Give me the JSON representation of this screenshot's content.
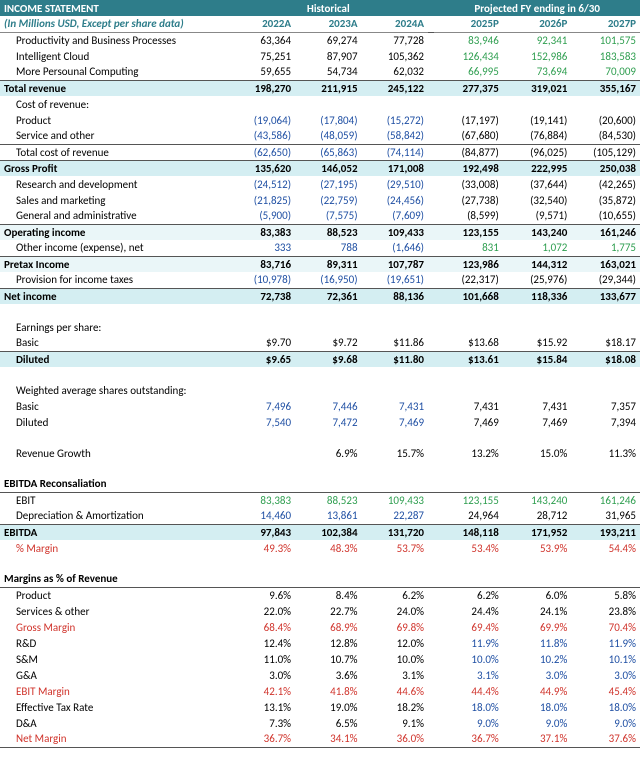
{
  "title": "INCOME STATEMENT",
  "subtitle": "(In Millions USD, Except per share data)",
  "hist_header": "Historical",
  "proj_header": "Projected FY ending in 6/30",
  "years": [
    "2022A",
    "2023A",
    "2024A",
    "2025P",
    "2026P",
    "2027P"
  ],
  "rows": [
    {
      "type": "plain",
      "indent": 1,
      "label": "Productivity and Business Processes",
      "h": [
        "63,364",
        "69,274",
        "77,728"
      ],
      "p": [
        "83,946",
        "92,341",
        "101,575"
      ],
      "pcolor": "green"
    },
    {
      "type": "plain",
      "indent": 1,
      "label": "Intelligent Cloud",
      "h": [
        "75,251",
        "87,907",
        "105,362"
      ],
      "p": [
        "126,434",
        "152,986",
        "183,583"
      ],
      "pcolor": "green"
    },
    {
      "type": "plain",
      "indent": 1,
      "label": "More Persounal Computing",
      "h": [
        "59,655",
        "54,734",
        "62,032"
      ],
      "p": [
        "66,995",
        "73,694",
        "70,009"
      ],
      "pcolor": "green",
      "bb": true
    },
    {
      "type": "band",
      "label": "Total revenue",
      "h": [
        "198,270",
        "211,915",
        "245,122"
      ],
      "p": [
        "277,375",
        "319,021",
        "355,167"
      ]
    },
    {
      "type": "plain",
      "indent": 1,
      "label": "Cost of revenue:",
      "h": [
        "",
        "",
        ""
      ],
      "p": [
        "",
        "",
        ""
      ]
    },
    {
      "type": "plain",
      "indent": 2,
      "label": "Product",
      "h": [
        "(19,064)",
        "(17,804)",
        "(15,272)"
      ],
      "p": [
        "(17,197)",
        "(19,141)",
        "(20,600)"
      ],
      "hcolor": "paren"
    },
    {
      "type": "plain",
      "indent": 2,
      "label": "Service and other",
      "h": [
        "(43,586)",
        "(48,059)",
        "(58,842)"
      ],
      "p": [
        "(67,680)",
        "(76,884)",
        "(84,530)"
      ],
      "hcolor": "paren",
      "bb": true
    },
    {
      "type": "plain",
      "indent": 1,
      "label": "Total cost of revenue",
      "h": [
        "(62,650)",
        "(65,863)",
        "(74,114)"
      ],
      "p": [
        "(84,877)",
        "(96,025)",
        "(105,129)"
      ],
      "hcolor": "paren",
      "bb": true
    },
    {
      "type": "band",
      "label": "Gross Profit",
      "h": [
        "135,620",
        "146,052",
        "171,008"
      ],
      "p": [
        "192,498",
        "222,995",
        "250,038"
      ]
    },
    {
      "type": "plain",
      "indent": 1,
      "label": "Research and development",
      "h": [
        "(24,512)",
        "(27,195)",
        "(29,510)"
      ],
      "p": [
        "(33,008)",
        "(37,644)",
        "(42,265)"
      ],
      "hcolor": "paren"
    },
    {
      "type": "plain",
      "indent": 1,
      "label": "Sales and marketing",
      "h": [
        "(21,825)",
        "(22,759)",
        "(24,456)"
      ],
      "p": [
        "(27,738)",
        "(32,540)",
        "(35,872)"
      ],
      "hcolor": "paren"
    },
    {
      "type": "plain",
      "indent": 1,
      "label": "General and administrative",
      "h": [
        "(5,900)",
        "(7,575)",
        "(7,609)"
      ],
      "p": [
        "(8,599)",
        "(9,571)",
        "(10,655)"
      ],
      "hcolor": "paren",
      "bb": true
    },
    {
      "type": "bandlight",
      "label": "Operating income",
      "h": [
        "83,383",
        "88,523",
        "109,433"
      ],
      "p": [
        "123,155",
        "143,240",
        "161,246"
      ]
    },
    {
      "type": "plain",
      "indent": 1,
      "label": "Other income (expense), net",
      "h": [
        "333",
        "788",
        "(1,646)"
      ],
      "p": [
        "831",
        "1,072",
        "1,775"
      ],
      "hcolor": "blue",
      "pcolor": "green",
      "bb": true
    },
    {
      "type": "bandlight",
      "label": "Pretax Income",
      "h": [
        "83,716",
        "89,311",
        "107,787"
      ],
      "p": [
        "123,986",
        "144,312",
        "163,021"
      ]
    },
    {
      "type": "plain",
      "indent": 1,
      "label": "Provision for income taxes",
      "h": [
        "(10,978)",
        "(16,950)",
        "(19,651)"
      ],
      "p": [
        "(22,317)",
        "(25,976)",
        "(29,344)"
      ],
      "hcolor": "paren",
      "bb": true
    },
    {
      "type": "band",
      "label": "Net income",
      "h": [
        "72,738",
        "72,361",
        "88,136"
      ],
      "p": [
        "101,668",
        "118,336",
        "133,677"
      ]
    },
    {
      "type": "empty"
    },
    {
      "type": "plain",
      "indent": 1,
      "label": "Earnings per share:",
      "h": [
        "",
        "",
        ""
      ],
      "p": [
        "",
        "",
        ""
      ]
    },
    {
      "type": "plain",
      "indent": 2,
      "label": "Basic",
      "h": [
        "$9.70",
        "$9.72",
        "$11.86"
      ],
      "p": [
        "$13.68",
        "$15.92",
        "$18.17"
      ],
      "bb": true
    },
    {
      "type": "band",
      "indent": 1,
      "label": "Diluted",
      "h": [
        "$9.65",
        "$9.68",
        "$11.80"
      ],
      "p": [
        "$13.61",
        "$15.84",
        "$18.08"
      ]
    },
    {
      "type": "empty"
    },
    {
      "type": "plain",
      "indent": 1,
      "label": "Weighted average shares outstanding:",
      "h": [
        "",
        "",
        ""
      ],
      "p": [
        "",
        "",
        ""
      ]
    },
    {
      "type": "plain",
      "indent": 2,
      "label": "Basic",
      "h": [
        "7,496",
        "7,446",
        "7,431"
      ],
      "p": [
        "7,431",
        "7,431",
        "7,357"
      ],
      "hcolor": "blue"
    },
    {
      "type": "plain",
      "indent": 2,
      "label": "Diluted",
      "h": [
        "7,540",
        "7,472",
        "7,469"
      ],
      "p": [
        "7,469",
        "7,469",
        "7,394"
      ],
      "hcolor": "blue"
    },
    {
      "type": "empty"
    },
    {
      "type": "plain",
      "indent": 1,
      "label": "Revenue Growth",
      "h": [
        "",
        "6.9%",
        "15.7%"
      ],
      "p": [
        "13.2%",
        "15.0%",
        "11.3%"
      ]
    },
    {
      "type": "empty"
    },
    {
      "type": "plain",
      "indent": 0,
      "bold": true,
      "label": "EBITDA Reconsaliation",
      "h": [
        "",
        "",
        ""
      ],
      "p": [
        "",
        "",
        ""
      ],
      "bb": true
    },
    {
      "type": "plain",
      "indent": 1,
      "label": "EBIT",
      "h": [
        "83,383",
        "88,523",
        "109,433"
      ],
      "p": [
        "123,155",
        "143,240",
        "161,246"
      ],
      "hcolor": "green",
      "pcolor": "green"
    },
    {
      "type": "plain",
      "indent": 1,
      "label": "Depreciation & Amortization",
      "h": [
        "14,460",
        "13,861",
        "22,287"
      ],
      "p": [
        "24,964",
        "28,712",
        "31,965"
      ],
      "hcolor": "blue",
      "bb": true
    },
    {
      "type": "band",
      "label": "EBITDA",
      "h": [
        "97,843",
        "102,384",
        "131,720"
      ],
      "p": [
        "148,118",
        "171,952",
        "193,211"
      ]
    },
    {
      "type": "plain",
      "indent": 1,
      "label": "% Margin",
      "labelcolor": "red",
      "h": [
        "49.3%",
        "48.3%",
        "53.7%"
      ],
      "p": [
        "53.4%",
        "53.9%",
        "54.4%"
      ],
      "hcolor": "red",
      "pcolor": "red"
    },
    {
      "type": "empty"
    },
    {
      "type": "plain",
      "indent": 0,
      "bold": true,
      "label": "Margins as % of Revenue",
      "h": [
        "",
        "",
        ""
      ],
      "p": [
        "",
        "",
        ""
      ],
      "bb": true
    },
    {
      "type": "plain",
      "indent": 1,
      "label": "Product",
      "h": [
        "9.6%",
        "8.4%",
        "6.2%"
      ],
      "p": [
        "6.2%",
        "6.0%",
        "5.8%"
      ]
    },
    {
      "type": "plain",
      "indent": 1,
      "label": "Services & other",
      "h": [
        "22.0%",
        "22.7%",
        "24.0%"
      ],
      "p": [
        "24.4%",
        "24.1%",
        "23.8%"
      ]
    },
    {
      "type": "plain",
      "indent": 1,
      "label": "Gross Margin",
      "labelcolor": "red",
      "h": [
        "68.4%",
        "68.9%",
        "69.8%"
      ],
      "p": [
        "69.4%",
        "69.9%",
        "70.4%"
      ],
      "hcolor": "red",
      "pcolor": "red"
    },
    {
      "type": "plain",
      "indent": 1,
      "label": "R&D",
      "h": [
        "12.4%",
        "12.8%",
        "12.0%"
      ],
      "p": [
        "11.9%",
        "11.8%",
        "11.9%"
      ],
      "pcolor": "blue"
    },
    {
      "type": "plain",
      "indent": 1,
      "label": "S&M",
      "h": [
        "11.0%",
        "10.7%",
        "10.0%"
      ],
      "p": [
        "10.0%",
        "10.2%",
        "10.1%"
      ],
      "pcolor": "blue"
    },
    {
      "type": "plain",
      "indent": 1,
      "label": "G&A",
      "h": [
        "3.0%",
        "3.6%",
        "3.1%"
      ],
      "p": [
        "3.1%",
        "3.0%",
        "3.0%"
      ],
      "pcolor": "blue"
    },
    {
      "type": "plain",
      "indent": 1,
      "label": "EBIT Margin",
      "labelcolor": "red",
      "h": [
        "42.1%",
        "41.8%",
        "44.6%"
      ],
      "p": [
        "44.4%",
        "44.9%",
        "45.4%"
      ],
      "hcolor": "red",
      "pcolor": "red"
    },
    {
      "type": "plain",
      "indent": 1,
      "label": "Effective Tax Rate",
      "h": [
        "13.1%",
        "19.0%",
        "18.2%"
      ],
      "p": [
        "18.0%",
        "18.0%",
        "18.0%"
      ],
      "pcolor": "blue"
    },
    {
      "type": "plain",
      "indent": 1,
      "label": "D&A",
      "h": [
        "7.3%",
        "6.5%",
        "9.1%"
      ],
      "p": [
        "9.0%",
        "9.0%",
        "9.0%"
      ],
      "pcolor": "blue"
    },
    {
      "type": "plain",
      "indent": 1,
      "label": "Net Margin",
      "labelcolor": "red",
      "h": [
        "36.7%",
        "34.1%",
        "36.0%"
      ],
      "p": [
        "36.7%",
        "37.1%",
        "37.6%"
      ],
      "hcolor": "red",
      "pcolor": "red",
      "bb": true
    }
  ]
}
